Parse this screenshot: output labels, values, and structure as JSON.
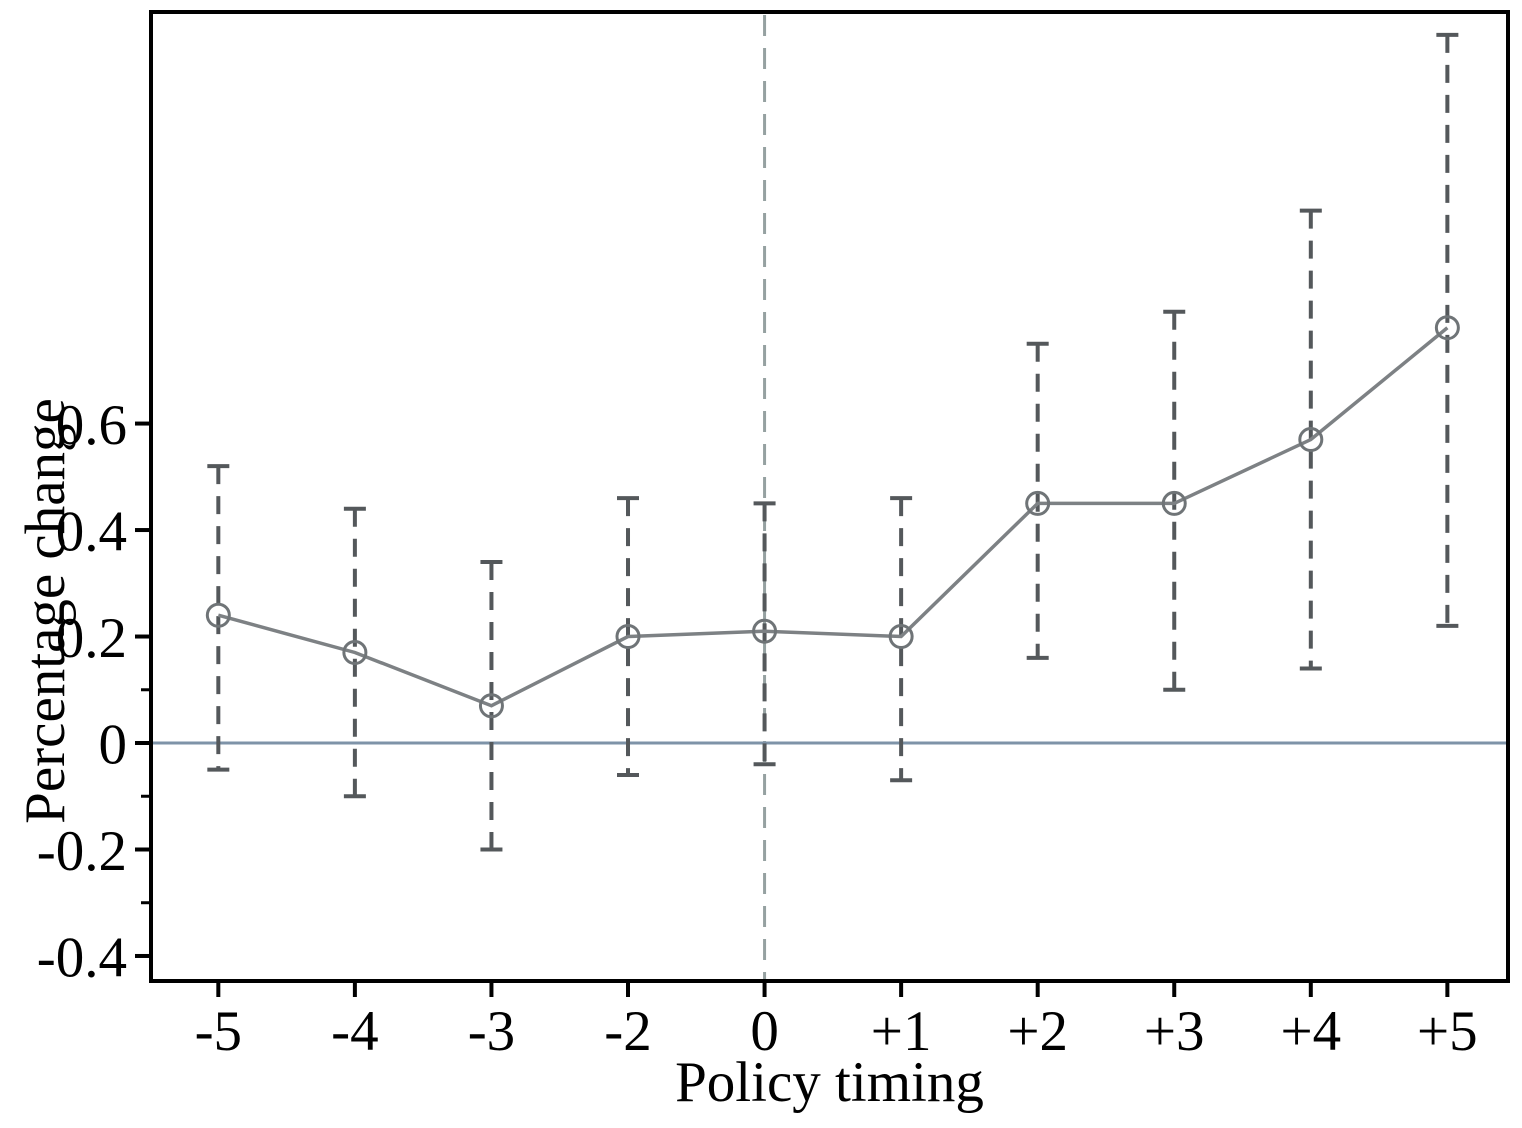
{
  "chart_data": {
    "type": "line",
    "subtype": "event-study point estimates with dashed 95% CI whiskers",
    "title": "",
    "xlabel": "Policy timing",
    "ylabel": "Percentage change",
    "categories": [
      "-5",
      "-4",
      "-3",
      "-2",
      "0",
      "+1",
      "+2",
      "+3",
      "+4",
      "+5"
    ],
    "series": [
      {
        "name": "estimate",
        "values": [
          0.24,
          0.17,
          0.07,
          0.2,
          0.21,
          0.2,
          0.45,
          0.45,
          0.57,
          0.78
        ]
      },
      {
        "name": "ci_lower",
        "values": [
          -0.05,
          -0.1,
          -0.2,
          -0.06,
          -0.04,
          -0.07,
          0.16,
          0.1,
          0.14,
          0.22
        ]
      },
      {
        "name": "ci_upper",
        "values": [
          0.52,
          0.44,
          0.34,
          0.46,
          0.45,
          0.46,
          0.75,
          0.81,
          1.0,
          1.33
        ]
      }
    ],
    "y_axis": {
      "major_ticks": [
        {
          "label": "0.6",
          "value": 0.6
        },
        {
          "label": "0.4",
          "value": 0.4
        },
        {
          "label": "0.2",
          "value": 0.2
        },
        {
          "label": "0",
          "value": 0
        },
        {
          "label": "-0.2",
          "value": -0.2
        },
        {
          "label": "-0.4",
          "value": -0.4
        }
      ],
      "minor_tick_values": [
        0.1,
        -0.1,
        -0.3
      ]
    },
    "ylim": [
      -0.447,
      1.373
    ],
    "xlim_index": [
      -0.493,
      9.444
    ],
    "reference_lines": {
      "horizontal_value": 0,
      "vertical_at_category": "0"
    },
    "grid": false,
    "legend": "none",
    "marker": "circle-hollow",
    "colors": {
      "background": "#ffffff",
      "frame": "#000000",
      "text": "#000000",
      "series_line": "#7d8184",
      "marker_stroke": "#6f7477",
      "whisker": "#54585b",
      "zero_line": "#7e93a8",
      "event_line": "#95a1a1"
    }
  }
}
